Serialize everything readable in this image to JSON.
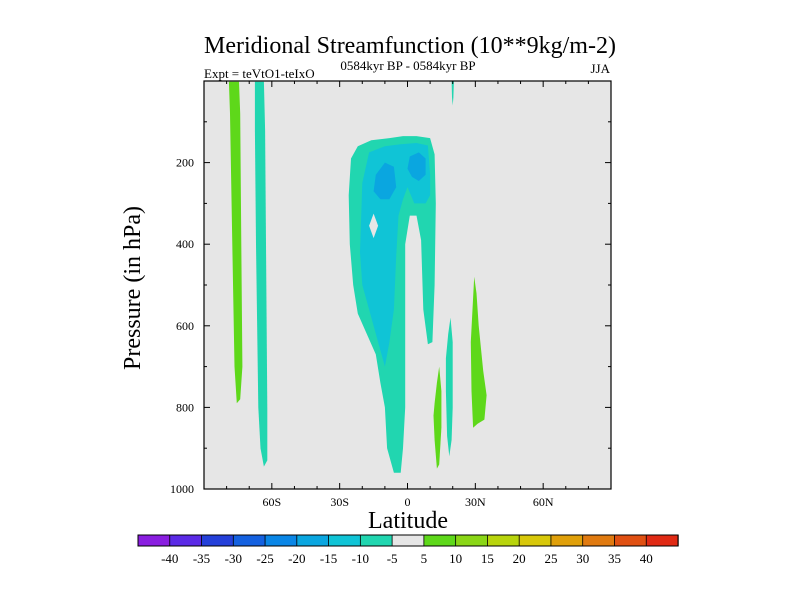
{
  "chart_data": {
    "type": "contour",
    "title": "Meridional Streamfunction (10**9kg/m-2)",
    "subtitle_left": "Expt = teVtO1-teIxO",
    "subtitle_center": "0584kyr BP - 0584kyr BP",
    "subtitle_right": "JJA",
    "xlabel": "Latitude",
    "ylabel": "Pressure (in hPa)",
    "xlim": [
      -90,
      90
    ],
    "ylim": [
      1000,
      0
    ],
    "x_ticks": [
      {
        "value": -60,
        "label": "60S"
      },
      {
        "value": -30,
        "label": "30S"
      },
      {
        "value": 0,
        "label": "0"
      },
      {
        "value": 30,
        "label": "30N"
      },
      {
        "value": 60,
        "label": "60N"
      }
    ],
    "y_ticks": [
      {
        "value": 200,
        "label": "200"
      },
      {
        "value": 400,
        "label": "400"
      },
      {
        "value": 600,
        "label": "600"
      },
      {
        "value": 800,
        "label": "800"
      },
      {
        "value": 1000,
        "label": "1000"
      }
    ],
    "background_color": "#e6e6e6",
    "colorbar": {
      "levels": [
        "-40",
        "-35",
        "-30",
        "-25",
        "-20",
        "-15",
        "-10",
        "-5",
        "5",
        "10",
        "15",
        "20",
        "25",
        "30",
        "35",
        "40"
      ],
      "colors": [
        "#8a1ee0",
        "#5b2ae6",
        "#2440d9",
        "#1461e0",
        "#0a86e6",
        "#0aa6e0",
        "#10c4d6",
        "#21d6b0",
        "#e6e6e6",
        "#5ed81a",
        "#8ad616",
        "#b8d40c",
        "#d8c80a",
        "#e0a00a",
        "#e07a10",
        "#e05012",
        "#e02a14"
      ]
    },
    "contours": [
      {
        "name": "positive-band-70s",
        "level": "5 to 10",
        "color": "#5ed81a",
        "points": [
          [
            -79,
            2
          ],
          [
            -74.5,
            2
          ],
          [
            -74,
            80
          ],
          [
            -73.5,
            400
          ],
          [
            -73,
            700
          ],
          [
            -74,
            780
          ],
          [
            -75.5,
            790
          ],
          [
            -76.5,
            700
          ],
          [
            -77.5,
            400
          ],
          [
            -78.5,
            80
          ]
        ]
      },
      {
        "name": "negative-band-65s",
        "level": "-10 to -5",
        "color": "#21d6b0",
        "points": [
          [
            -67.5,
            2
          ],
          [
            -63.5,
            2
          ],
          [
            -63,
            120
          ],
          [
            -62,
            800
          ],
          [
            -62,
            930
          ],
          [
            -63.5,
            945
          ],
          [
            -65,
            900
          ],
          [
            -66,
            800
          ],
          [
            -67,
            400
          ],
          [
            -67.5,
            120
          ]
        ]
      },
      {
        "name": "negative-cell-outer",
        "level": "-10 to -5",
        "color": "#21d6b0",
        "points": [
          [
            -26,
            280
          ],
          [
            -25,
            190
          ],
          [
            -22,
            160
          ],
          [
            -16,
            145
          ],
          [
            -8,
            140
          ],
          [
            -2,
            135
          ],
          [
            4,
            135
          ],
          [
            10,
            140
          ],
          [
            12,
            180
          ],
          [
            12.5,
            300
          ],
          [
            12,
            500
          ],
          [
            11,
            640
          ],
          [
            9,
            645
          ],
          [
            7,
            560
          ],
          [
            6,
            390
          ],
          [
            4,
            330
          ],
          [
            1,
            330
          ],
          [
            -1,
            400
          ],
          [
            -1,
            620
          ],
          [
            -1,
            800
          ],
          [
            -2,
            900
          ],
          [
            -3,
            960
          ],
          [
            -6,
            960
          ],
          [
            -9,
            900
          ],
          [
            -10,
            800
          ],
          [
            -12,
            740
          ],
          [
            -14,
            670
          ],
          [
            -18,
            620
          ],
          [
            -22,
            570
          ],
          [
            -24,
            500
          ],
          [
            -25.5,
            400
          ]
        ]
      },
      {
        "name": "negative-cell-middle",
        "level": "-15 to -10",
        "color": "#10c4d6",
        "points": [
          [
            -21,
            420
          ],
          [
            -20,
            250
          ],
          [
            -17,
            175
          ],
          [
            -10,
            160
          ],
          [
            -3,
            155
          ],
          [
            4,
            152
          ],
          [
            9,
            158
          ],
          [
            10,
            230
          ],
          [
            10,
            280
          ],
          [
            8,
            300
          ],
          [
            3,
            300
          ],
          [
            0,
            260
          ],
          [
            -2,
            290
          ],
          [
            -4,
            330
          ],
          [
            -5,
            430
          ],
          [
            -6,
            560
          ],
          [
            -8,
            640
          ],
          [
            -10,
            700
          ],
          [
            -13,
            640
          ],
          [
            -17,
            560
          ],
          [
            -20,
            500
          ]
        ]
      },
      {
        "name": "negative-cell-core-left",
        "level": "-20 to -15",
        "color": "#0aa6e0",
        "points": [
          [
            -14,
            230
          ],
          [
            -10,
            200
          ],
          [
            -6,
            210
          ],
          [
            -5,
            260
          ],
          [
            -8,
            290
          ],
          [
            -12,
            290
          ],
          [
            -15,
            270
          ]
        ]
      },
      {
        "name": "negative-cell-core-right",
        "level": "-20 to -15",
        "color": "#0aa6e0",
        "points": [
          [
            1,
            185
          ],
          [
            5,
            175
          ],
          [
            8,
            190
          ],
          [
            8,
            230
          ],
          [
            5,
            245
          ],
          [
            2,
            235
          ],
          [
            0,
            215
          ]
        ]
      },
      {
        "name": "negative-cell-notch",
        "level": "0",
        "color": "#e6e6e6",
        "points": [
          [
            -15,
            325
          ],
          [
            -13,
            355
          ],
          [
            -15,
            385
          ],
          [
            -17,
            355
          ]
        ]
      },
      {
        "name": "positive-band-12n",
        "level": "5 to 10",
        "color": "#5ed81a",
        "points": [
          [
            12,
            790
          ],
          [
            13,
            740
          ],
          [
            14,
            700
          ],
          [
            15,
            760
          ],
          [
            15,
            850
          ],
          [
            14,
            940
          ],
          [
            13,
            950
          ],
          [
            12,
            880
          ],
          [
            11.5,
            820
          ]
        ]
      },
      {
        "name": "negative-band-18n",
        "level": "-10 to -5",
        "color": "#21d6b0",
        "points": [
          [
            17,
            680
          ],
          [
            18,
            620
          ],
          [
            19,
            580
          ],
          [
            20,
            640
          ],
          [
            20,
            800
          ],
          [
            19.5,
            880
          ],
          [
            18.5,
            920
          ],
          [
            17.5,
            870
          ],
          [
            17,
            760
          ]
        ]
      },
      {
        "name": "positive-cell-28n",
        "level": "5 to 10",
        "color": "#5ed81a",
        "points": [
          [
            28,
            640
          ],
          [
            29.5,
            480
          ],
          [
            30.5,
            520
          ],
          [
            31.5,
            600
          ],
          [
            33.5,
            710
          ],
          [
            35,
            770
          ],
          [
            34,
            830
          ],
          [
            31,
            840
          ],
          [
            29,
            850
          ],
          [
            28.3,
            760
          ]
        ]
      },
      {
        "name": "negative-sliver-20n",
        "level": "-10 to -5",
        "color": "#21d6b0",
        "points": [
          [
            19.5,
            0
          ],
          [
            20.5,
            0
          ],
          [
            20.3,
            40
          ],
          [
            20,
            60
          ],
          [
            19.7,
            40
          ]
        ]
      }
    ]
  }
}
